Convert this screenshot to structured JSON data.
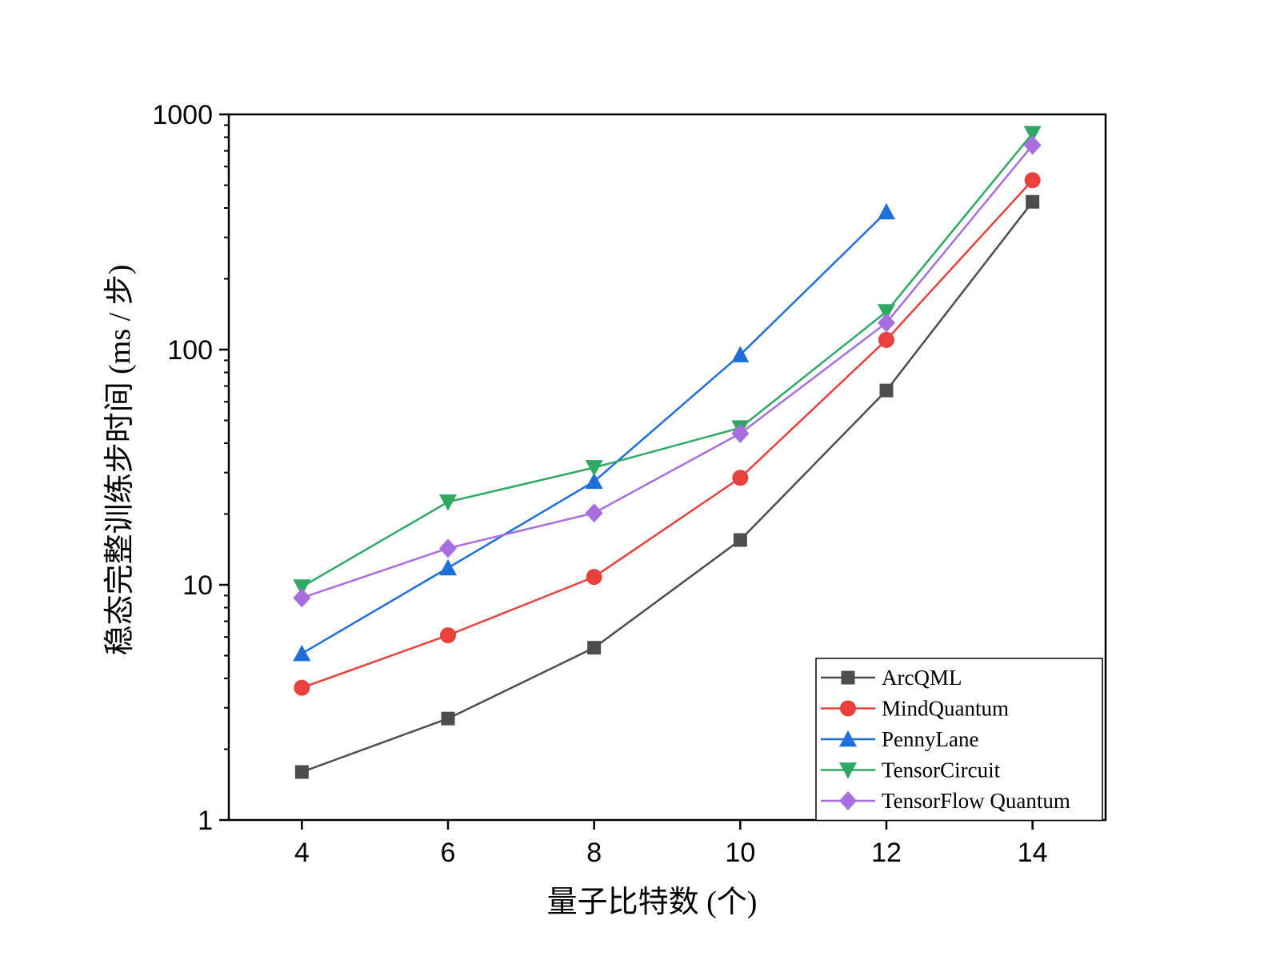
{
  "chart_data": {
    "type": "line",
    "title": "",
    "xlabel": "量子比特数 (个)",
    "ylabel": "稳态完整训练步时间 (ms / 步)",
    "xlim": [
      3,
      15
    ],
    "ylim": [
      1,
      1000
    ],
    "yscale": "log",
    "xticks": [
      4,
      6,
      8,
      10,
      12,
      14
    ],
    "xtick_labels": [
      "4",
      "6",
      "8",
      "10",
      "12",
      "14"
    ],
    "yticks": [
      1,
      10,
      100,
      1000
    ],
    "ytick_labels": [
      "1",
      "10",
      "100",
      "1000"
    ],
    "legend_position": "bottom-right",
    "grid": false,
    "series": [
      {
        "name": "ArcQML",
        "color": "#4d4d4d",
        "marker": "square",
        "x": [
          4,
          6,
          8,
          10,
          12,
          14
        ],
        "values": [
          1.6,
          2.7,
          5.4,
          15.5,
          67,
          425
        ]
      },
      {
        "name": "MindQuantum",
        "color": "#e8413c",
        "marker": "circle",
        "x": [
          4,
          6,
          8,
          10,
          12,
          14
        ],
        "values": [
          3.65,
          6.1,
          10.8,
          28.5,
          110,
          525
        ]
      },
      {
        "name": "PennyLane",
        "color": "#1f6fd8",
        "marker": "triangle-up",
        "x": [
          4,
          6,
          8,
          10,
          12
        ],
        "values": [
          5.1,
          11.8,
          27.5,
          95,
          385
        ]
      },
      {
        "name": "TensorCircuit",
        "color": "#2fa765",
        "marker": "triangle-down",
        "x": [
          4,
          6,
          8,
          10,
          12,
          14
        ],
        "values": [
          9.8,
          22.5,
          31.5,
          46.5,
          145,
          830
        ]
      },
      {
        "name": "TensorFlow Quantum",
        "color": "#a86ee0",
        "marker": "diamond",
        "x": [
          4,
          6,
          8,
          10,
          12,
          14
        ],
        "values": [
          8.8,
          14.3,
          20.2,
          44,
          130,
          740
        ]
      }
    ]
  }
}
